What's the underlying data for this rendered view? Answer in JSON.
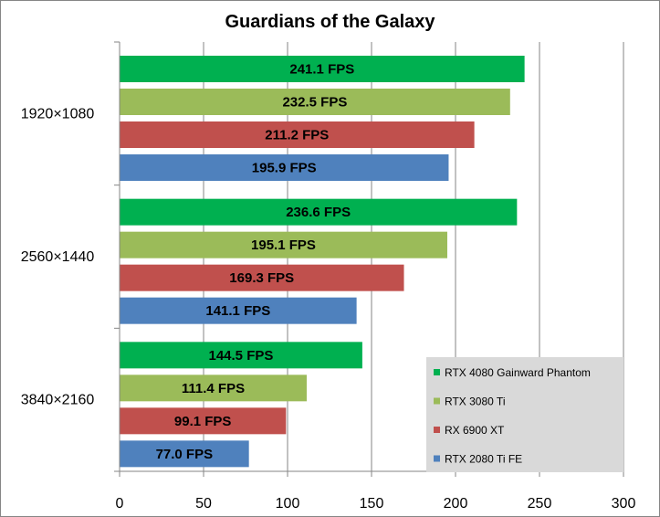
{
  "chart_data": {
    "type": "bar",
    "orientation": "horizontal",
    "title": "Guardians of the Galaxy",
    "xlabel": "",
    "ylabel": "",
    "xlim": [
      0,
      300
    ],
    "x_ticks": [
      0,
      50,
      100,
      150,
      200,
      250,
      300
    ],
    "grid": "vertical-major",
    "legend_position": "bottom-right",
    "categories": [
      "1920×1080",
      "2560×1440",
      "3840×2160"
    ],
    "series": [
      {
        "name": "RTX 4080 Gainward Phantom",
        "color": "#00b050",
        "values": [
          241.1,
          236.6,
          144.5
        ],
        "labels": [
          "241.1 FPS",
          "236.6 FPS",
          "144.5 FPS"
        ]
      },
      {
        "name": "RTX 3080 Ti",
        "color": "#9bbb59",
        "values": [
          232.5,
          195.1,
          111.4
        ],
        "labels": [
          "232.5 FPS",
          "195.1 FPS",
          "111.4 FPS"
        ]
      },
      {
        "name": "RX 6900 XT",
        "color": "#c0504d",
        "values": [
          211.2,
          169.3,
          99.1
        ],
        "labels": [
          "211.2 FPS",
          "169.3 FPS",
          "99.1 FPS"
        ]
      },
      {
        "name": "RTX 2080 Ti FE",
        "color": "#4f81bd",
        "values": [
          195.9,
          141.1,
          77.0
        ],
        "labels": [
          "195.9 FPS",
          "141.1 FPS",
          "77.0 FPS"
        ]
      }
    ]
  }
}
